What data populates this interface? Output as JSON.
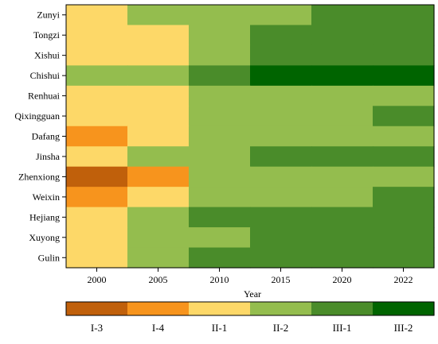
{
  "chart_data": {
    "type": "heatmap",
    "xlabel": "Year",
    "ylabel": "",
    "title": "",
    "x": [
      "2000",
      "2005",
      "2010",
      "2015",
      "2020",
      "2022"
    ],
    "y": [
      "Zunyi",
      "Tongzi",
      "Xishui",
      "Chishui",
      "Renhuai",
      "Qixingguan",
      "Dafang",
      "Jinsha",
      "Zhenxiong",
      "Weixin",
      "Hejiang",
      "Xuyong",
      "Gulin"
    ],
    "categories": [
      "I-3",
      "I-4",
      "II-1",
      "II-2",
      "III-1",
      "III-2"
    ],
    "colors": {
      "I-3": "#c0600b",
      "I-4": "#f7941d",
      "II-1": "#fdd868",
      "II-2": "#94bd4e",
      "III-1": "#4a8c2a",
      "III-2": "#006400"
    },
    "values": [
      [
        "II-1",
        "II-2",
        "II-2",
        "II-2",
        "III-1",
        "III-1"
      ],
      [
        "II-1",
        "II-1",
        "II-2",
        "III-1",
        "III-1",
        "III-1"
      ],
      [
        "II-1",
        "II-1",
        "II-2",
        "III-1",
        "III-1",
        "III-1"
      ],
      [
        "II-2",
        "II-2",
        "III-1",
        "III-2",
        "III-2",
        "III-2"
      ],
      [
        "II-1",
        "II-1",
        "II-2",
        "II-2",
        "II-2",
        "II-2"
      ],
      [
        "II-1",
        "II-1",
        "II-2",
        "II-2",
        "II-2",
        "III-1"
      ],
      [
        "I-4",
        "II-1",
        "II-2",
        "II-2",
        "II-2",
        "II-2"
      ],
      [
        "II-1",
        "II-2",
        "II-2",
        "III-1",
        "III-1",
        "III-1"
      ],
      [
        "I-3",
        "I-4",
        "II-2",
        "II-2",
        "II-2",
        "II-2"
      ],
      [
        "I-4",
        "II-1",
        "II-2",
        "II-2",
        "II-2",
        "III-1"
      ],
      [
        "II-1",
        "II-2",
        "III-1",
        "III-1",
        "III-1",
        "III-1"
      ],
      [
        "II-1",
        "II-2",
        "II-2",
        "III-1",
        "III-1",
        "III-1"
      ],
      [
        "II-1",
        "II-2",
        "III-1",
        "III-1",
        "III-1",
        "III-1"
      ]
    ],
    "legend": "bottom"
  }
}
